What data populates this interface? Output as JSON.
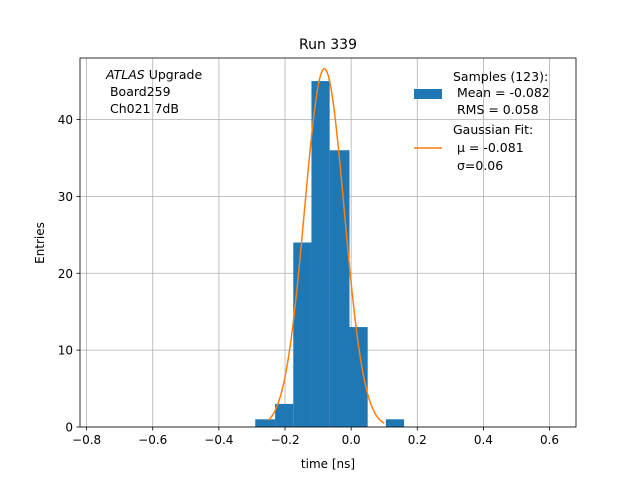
{
  "chart_data": {
    "type": "histogram",
    "title": "Run 339",
    "xlabel": "time [ns]",
    "ylabel": "Entries",
    "xlim": [
      -0.82,
      0.68
    ],
    "ylim": [
      0,
      48
    ],
    "grid": true,
    "x_ticks": [
      -0.8,
      -0.6,
      -0.4,
      -0.2,
      0.0,
      0.2,
      0.4,
      0.6
    ],
    "x_tick_labels": [
      "−0.8",
      "−0.6",
      "−0.4",
      "−0.2",
      "0.0",
      "0.2",
      "0.4",
      "0.6"
    ],
    "y_ticks": [
      0,
      10,
      20,
      30,
      40
    ],
    "y_tick_labels": [
      "0",
      "10",
      "20",
      "30",
      "40"
    ],
    "bins": [
      {
        "x0": -0.29,
        "x1": -0.23,
        "count": 1
      },
      {
        "x0": -0.23,
        "x1": -0.175,
        "count": 3
      },
      {
        "x0": -0.175,
        "x1": -0.12,
        "count": 24
      },
      {
        "x0": -0.12,
        "x1": -0.065,
        "count": 45
      },
      {
        "x0": -0.065,
        "x1": -0.005,
        "count": 36
      },
      {
        "x0": -0.005,
        "x1": 0.05,
        "count": 13
      },
      {
        "x0": 0.05,
        "x1": 0.105,
        "count": 0
      },
      {
        "x0": 0.105,
        "x1": 0.16,
        "count": 1
      }
    ],
    "bar_color": "#1f77b4",
    "fit": {
      "name": "Gaussian Fit",
      "mu": -0.081,
      "sigma": 0.06,
      "amplitude": 46.6,
      "x_range": [
        -0.25,
        0.1
      ],
      "color": "#ff7f0e"
    },
    "annotation": {
      "italic": "ATLAS",
      "rest": " Upgrade",
      "line2": " Board259",
      "line3": " Ch021 7dB"
    },
    "legend": {
      "position": "top-right",
      "samples": {
        "line1": "Samples (123):",
        "line2": " Mean = -0.082",
        "line3": " RMS = 0.058"
      },
      "fit": {
        "line1": "Gaussian Fit:",
        "line2": " μ = -0.081",
        "line3": " σ=0.06"
      }
    }
  }
}
